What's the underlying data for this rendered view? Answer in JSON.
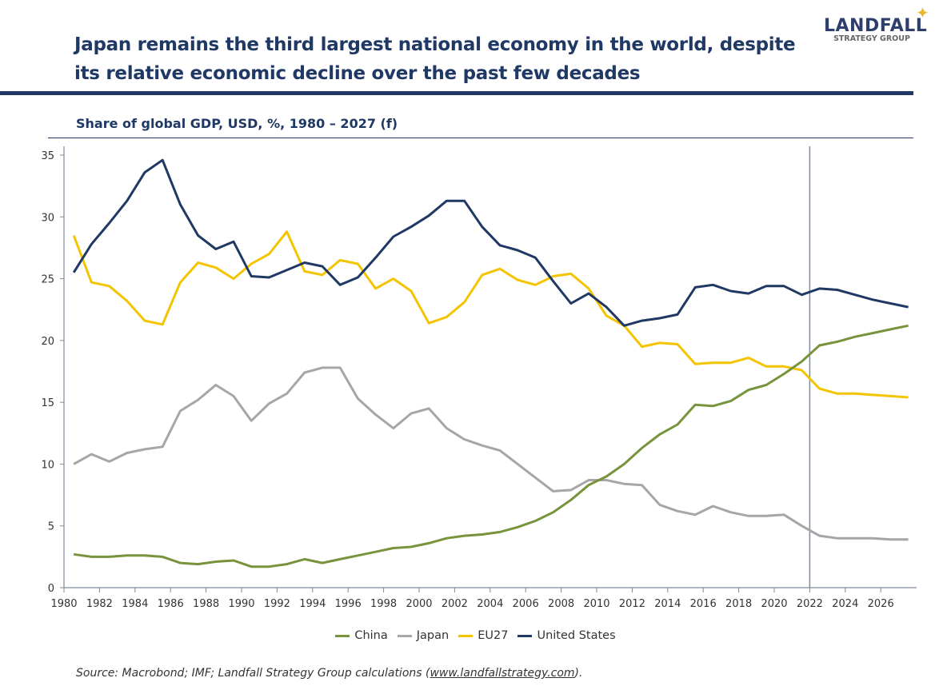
{
  "header": {
    "title": "Japan remains the third largest national economy in the world, despite its relative economic decline over the past few decades",
    "logo_line1": "LANDFALL",
    "logo_line2": "STRATEGY GROUP"
  },
  "source": {
    "prefix": "Source: Macrobond; IMF; Landfall Strategy Group calculations (",
    "link": "www.landfallstrategy.com",
    "suffix": ")."
  },
  "colors": {
    "brand": "#1f3864",
    "china": "#77933c",
    "japan": "#a6a6a6",
    "eu27": "#f5c400",
    "us": "#1f3864",
    "forecast_line": "#7f8a99"
  },
  "chart_data": {
    "type": "line",
    "title": "Share of global GDP, USD, %, 1980 – 2027 (f)",
    "xlabel": "",
    "ylabel": "",
    "xlim": [
      1980,
      2028
    ],
    "ylim": [
      0,
      35
    ],
    "yticks": [
      0,
      5,
      10,
      15,
      20,
      25,
      30,
      35
    ],
    "xticks": [
      1980,
      1982,
      1984,
      1986,
      1988,
      1990,
      1992,
      1994,
      1996,
      1998,
      2000,
      2002,
      2004,
      2006,
      2008,
      2010,
      2012,
      2014,
      2016,
      2018,
      2020,
      2022,
      2024,
      2026
    ],
    "grid": false,
    "legend_position": "bottom",
    "forecast_marker_year": 2022,
    "x": [
      1980,
      1981,
      1982,
      1983,
      1984,
      1985,
      1986,
      1987,
      1988,
      1989,
      1990,
      1991,
      1992,
      1993,
      1994,
      1995,
      1996,
      1997,
      1998,
      1999,
      2000,
      2001,
      2002,
      2003,
      2004,
      2005,
      2006,
      2007,
      2008,
      2009,
      2010,
      2011,
      2012,
      2013,
      2014,
      2015,
      2016,
      2017,
      2018,
      2019,
      2020,
      2021,
      2022,
      2023,
      2024,
      2025,
      2026,
      2027
    ],
    "series": [
      {
        "name": "China",
        "color": "#77933c",
        "values": [
          2.7,
          2.5,
          2.5,
          2.6,
          2.6,
          2.5,
          2.0,
          1.9,
          2.1,
          2.2,
          1.7,
          1.7,
          1.9,
          2.3,
          2.0,
          2.3,
          2.6,
          2.9,
          3.2,
          3.3,
          3.6,
          4.0,
          4.2,
          4.3,
          4.5,
          4.9,
          5.4,
          6.1,
          7.1,
          8.3,
          9.0,
          10.0,
          11.3,
          12.4,
          13.2,
          14.8,
          14.7,
          15.1,
          16.0,
          16.4,
          17.3,
          18.3,
          19.6,
          19.9,
          20.3,
          20.6,
          20.9,
          21.2
        ]
      },
      {
        "name": "Japan",
        "color": "#a6a6a6",
        "values": [
          10.0,
          10.8,
          10.2,
          10.9,
          11.2,
          11.4,
          14.3,
          15.2,
          16.4,
          15.5,
          13.5,
          14.9,
          15.7,
          17.4,
          17.8,
          17.8,
          15.3,
          14.0,
          12.9,
          14.1,
          14.5,
          12.9,
          12.0,
          11.5,
          11.1,
          10.0,
          8.9,
          7.8,
          7.9,
          8.7,
          8.7,
          8.4,
          8.3,
          6.7,
          6.2,
          5.9,
          6.6,
          6.1,
          5.8,
          5.8,
          5.9,
          5.0,
          4.2,
          4.0,
          4.0,
          4.0,
          3.9,
          3.9
        ]
      },
      {
        "name": "EU27",
        "color": "#f5c400",
        "values": [
          28.5,
          24.7,
          24.4,
          23.2,
          21.6,
          21.3,
          24.7,
          26.3,
          25.9,
          25.0,
          26.2,
          27.0,
          28.8,
          25.6,
          25.3,
          26.5,
          26.2,
          24.2,
          25.0,
          24.0,
          21.4,
          21.9,
          23.1,
          25.3,
          25.8,
          24.9,
          24.5,
          25.2,
          25.4,
          24.2,
          22.0,
          21.2,
          19.5,
          19.8,
          19.7,
          18.1,
          18.2,
          18.2,
          18.6,
          17.9,
          17.9,
          17.6,
          16.1,
          15.7,
          15.7,
          15.6,
          15.5,
          15.4
        ]
      },
      {
        "name": "United States",
        "color": "#1f3864",
        "values": [
          25.5,
          27.8,
          29.5,
          31.3,
          33.6,
          34.6,
          31.0,
          28.5,
          27.4,
          28.0,
          25.2,
          25.1,
          25.7,
          26.3,
          26.0,
          24.5,
          25.1,
          26.7,
          28.4,
          29.2,
          30.1,
          31.3,
          31.3,
          29.2,
          27.7,
          27.3,
          26.7,
          24.8,
          23.0,
          23.8,
          22.7,
          21.2,
          21.6,
          21.8,
          22.1,
          24.3,
          24.5,
          24.0,
          23.8,
          24.4,
          24.4,
          23.7,
          24.2,
          24.1,
          23.7,
          23.3,
          23.0,
          22.7
        ]
      }
    ]
  }
}
